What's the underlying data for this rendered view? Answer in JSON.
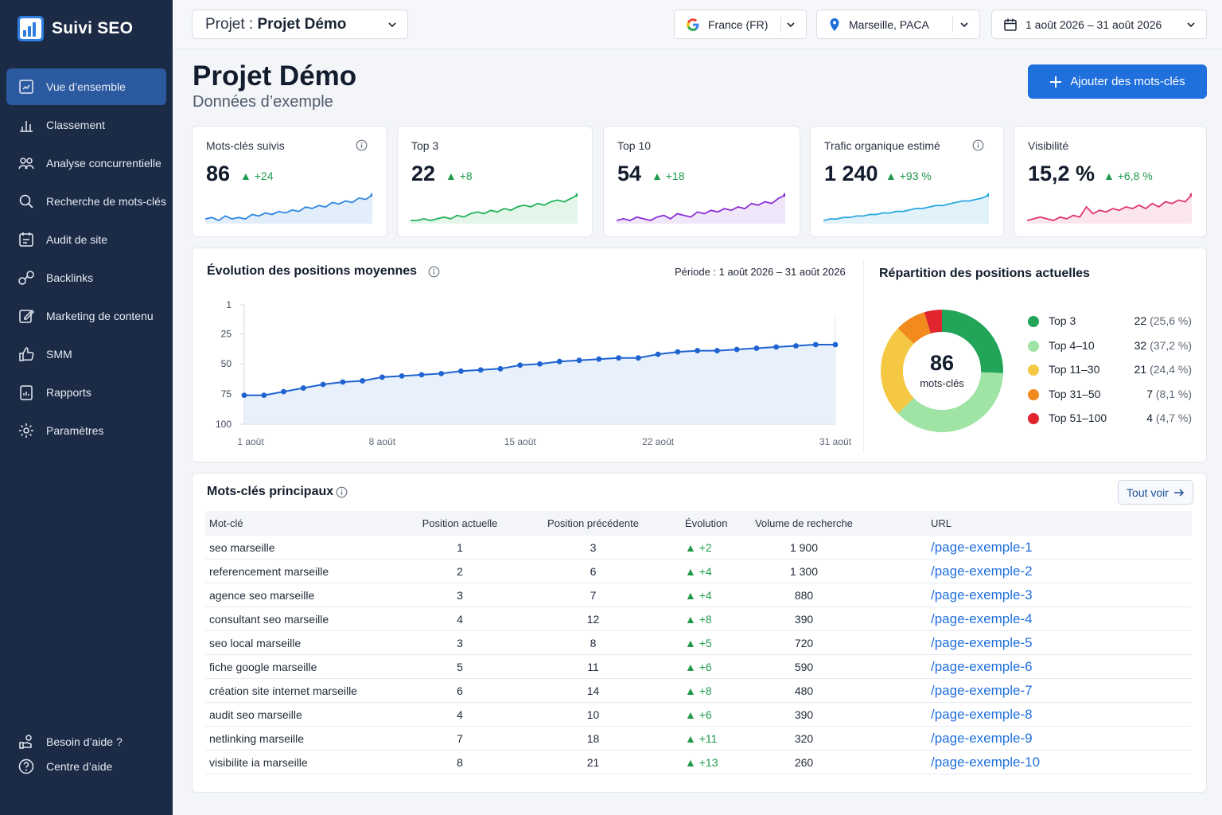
{
  "brand": {
    "name": "Suivi SEO"
  },
  "sidebar": {
    "items": [
      {
        "label": "Vue d’ensemble",
        "icon": "dashboard-icon",
        "active": true
      },
      {
        "label": "Classement",
        "icon": "ranking-icon"
      },
      {
        "label": "Analyse concurrentielle",
        "icon": "competitors-icon"
      },
      {
        "label": "Recherche de mots-clés",
        "icon": "search-icon"
      },
      {
        "label": "Audit de site",
        "icon": "audit-icon"
      },
      {
        "label": "Backlinks",
        "icon": "link-icon"
      },
      {
        "label": "Marketing de contenu",
        "icon": "edit-icon"
      },
      {
        "label": "SMM",
        "icon": "thumbs-up-icon"
      },
      {
        "label": "Rapports",
        "icon": "report-icon"
      },
      {
        "label": "Paramètres",
        "icon": "gear-icon"
      }
    ],
    "bottom": [
      {
        "label": "Besoin d’aide ?",
        "icon": "help-hand-icon"
      },
      {
        "label": "Centre d’aide",
        "icon": "question-icon"
      }
    ]
  },
  "topbar": {
    "project_prefix": "Projet : ",
    "project_name": "Projet Démo",
    "engine": "France (FR)",
    "location": "Marseille, PACA",
    "dates": "1 août 2026 – 31 août 2026"
  },
  "header": {
    "title": "Projet Démo",
    "subtitle": "Données d’exemple",
    "add_button": "Ajouter des mots-clés"
  },
  "kpis": [
    {
      "label": "Mots-clés suivis",
      "value": "86",
      "delta": "+24",
      "info": true,
      "color": "#2f86de",
      "fill": "#e3eefb",
      "spark": [
        6,
        7,
        5,
        8,
        6,
        7,
        6,
        9,
        8,
        10,
        9,
        11,
        10,
        12,
        11,
        14,
        13,
        15,
        14,
        17,
        16,
        18,
        17,
        20,
        19,
        22
      ]
    },
    {
      "label": "Top 3",
      "value": "22",
      "delta": "+8",
      "info": false,
      "color": "#22b25a",
      "fill": "#e4f6ea",
      "spark": [
        6,
        6,
        7,
        6,
        7,
        8,
        7,
        9,
        8,
        10,
        11,
        10,
        12,
        11,
        13,
        12,
        14,
        15,
        14,
        16,
        15,
        17,
        18,
        17,
        19,
        21
      ]
    },
    {
      "label": "Top 10",
      "value": "54",
      "delta": "+18",
      "info": false,
      "color": "#8a2fd6",
      "fill": "#f0e6fa",
      "spark": [
        6,
        7,
        6,
        8,
        7,
        6,
        8,
        9,
        7,
        10,
        9,
        8,
        11,
        10,
        12,
        11,
        13,
        12,
        14,
        13,
        16,
        15,
        17,
        16,
        19,
        21
      ]
    },
    {
      "label": "Trafic organique estimé",
      "value": "1 240",
      "delta": "+93 %",
      "info": true,
      "color": "#2aa8e0",
      "fill": "#e1f2fb",
      "spark": [
        4,
        5,
        5,
        6,
        6,
        7,
        7,
        8,
        8,
        9,
        9,
        10,
        10,
        11,
        12,
        12,
        13,
        14,
        14,
        15,
        16,
        17,
        17,
        18,
        19,
        21
      ]
    },
    {
      "label": "Visibilité",
      "value": "15,2 %",
      "delta": "+6,8 %",
      "info": false,
      "color": "#e0356f",
      "fill": "#fbe6ee",
      "spark": [
        6,
        7,
        8,
        7,
        6,
        8,
        7,
        9,
        8,
        14,
        10,
        12,
        11,
        13,
        12,
        14,
        13,
        15,
        13,
        16,
        14,
        17,
        16,
        18,
        17,
        21
      ]
    }
  ],
  "evolution": {
    "title": "Évolution des positions moyennes",
    "period": "Période : 1 août 2026 – 31 août 2026",
    "yticks": [
      "1",
      "25",
      "50",
      "75",
      "100"
    ],
    "xticks": [
      "1 août",
      "8 août",
      "15 août",
      "22 août",
      "31 août"
    ],
    "color": "#1f63d1"
  },
  "distribution": {
    "title": "Répartition des positions actuelles",
    "center_value": "86",
    "center_label": "mots-clés",
    "segments": [
      {
        "label": "Top 3",
        "count": "22",
        "pct": "(25,6 %)",
        "value": 22,
        "color": "#22a559"
      },
      {
        "label": "Top 4–10",
        "count": "32",
        "pct": "(37,2 %)",
        "value": 32,
        "color": "#9fe3a5"
      },
      {
        "label": "Top 11–30",
        "count": "21",
        "pct": "(24,4 %)",
        "value": 21,
        "color": "#f5c844"
      },
      {
        "label": "Top 31–50",
        "count": "7",
        "pct": "(8,1 %)",
        "value": 7,
        "color": "#f28a1e"
      },
      {
        "label": "Top 51–100",
        "count": "4",
        "pct": "(4,7 %)",
        "value": 4,
        "color": "#e0252f"
      }
    ]
  },
  "keywords": {
    "title": "Mots-clés principaux",
    "see_all": "Tout voir",
    "columns": [
      "Mot-clé",
      "Position actuelle",
      "Position précédente",
      "Évolution",
      "Volume de recherche",
      "URL"
    ],
    "rows": [
      [
        "seo marseille",
        "1",
        "3",
        "+2",
        "1 900",
        "/page-exemple-1"
      ],
      [
        "referencement marseille",
        "2",
        "6",
        "+4",
        "1 300",
        "/page-exemple-2"
      ],
      [
        "agence seo marseille",
        "3",
        "7",
        "+4",
        "880",
        "/page-exemple-3"
      ],
      [
        "consultant seo marseille",
        "4",
        "12",
        "+8",
        "390",
        "/page-exemple-4"
      ],
      [
        "seo local marseille",
        "3",
        "8",
        "+5",
        "720",
        "/page-exemple-5"
      ],
      [
        "fiche google marseille",
        "5",
        "11",
        "+6",
        "590",
        "/page-exemple-6"
      ],
      [
        "création site internet marseille",
        "6",
        "14",
        "+8",
        "480",
        "/page-exemple-7"
      ],
      [
        "audit seo marseille",
        "4",
        "10",
        "+6",
        "390",
        "/page-exemple-8"
      ],
      [
        "netlinking marseille",
        "7",
        "18",
        "+11",
        "320",
        "/page-exemple-9"
      ],
      [
        "visibilite ia marseille",
        "8",
        "21",
        "+13",
        "260",
        "/page-exemple-10"
      ]
    ]
  },
  "chart_data": [
    {
      "type": "line",
      "title": "Évolution des positions moyennes",
      "xlabel": "",
      "ylabel": "",
      "x": [
        "1 août",
        "2 août",
        "3 août",
        "4 août",
        "5 août",
        "6 août",
        "7 août",
        "8 août",
        "9 août",
        "10 août",
        "11 août",
        "12 août",
        "13 août",
        "14 août",
        "15 août",
        "16 août",
        "17 août",
        "18 août",
        "19 août",
        "20 août",
        "21 août",
        "22 août",
        "23 août",
        "24 août",
        "25 août",
        "26 août",
        "27 août",
        "28 août",
        "29 août",
        "30 août",
        "31 août"
      ],
      "series": [
        {
          "values": [
            76,
            76,
            73,
            70,
            67,
            65,
            64,
            61,
            60,
            59,
            58,
            56,
            55,
            54,
            51,
            50,
            48,
            47,
            46,
            45,
            45,
            42,
            40,
            39,
            39,
            38,
            37,
            36,
            35,
            34,
            34
          ]
        }
      ],
      "ylim": [
        1,
        100
      ],
      "y_inverted": true,
      "grid": false
    },
    {
      "type": "pie",
      "title": "Répartition des positions actuelles",
      "categories": [
        "Top 3",
        "Top 4–10",
        "Top 11–30",
        "Top 31–50",
        "Top 51–100"
      ],
      "values": [
        22,
        32,
        21,
        7,
        4
      ]
    }
  ]
}
